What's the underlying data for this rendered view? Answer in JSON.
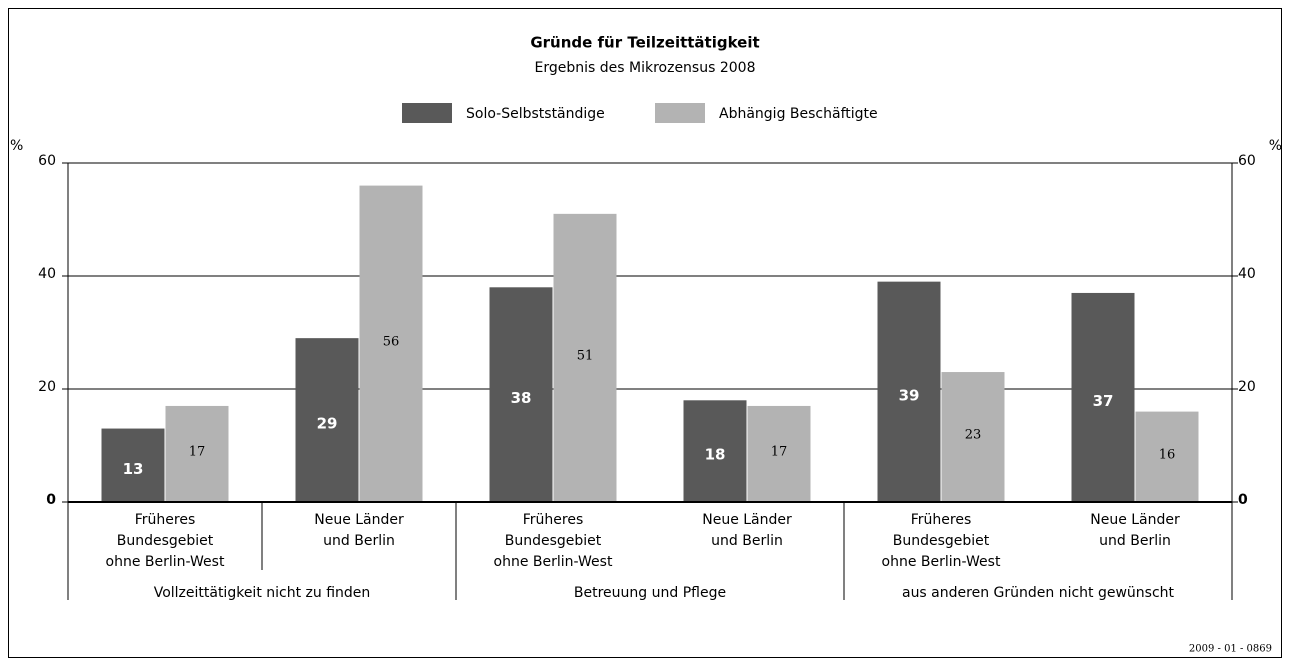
{
  "chart_data": {
    "type": "bar",
    "title": "Gründe für Teilzeittätigkeit",
    "subtitle": "Ergebnis des Mikrozensus 2008",
    "y_unit": "%",
    "categories": [
      [
        "Früheres",
        "Bundesgebiet",
        "ohne Berlin-West"
      ],
      [
        "Neue Länder",
        "und Berlin"
      ],
      [
        "Früheres",
        "Bundesgebiet",
        "ohne Berlin-West"
      ],
      [
        "Neue Länder",
        "und Berlin"
      ],
      [
        "Früheres",
        "Bundesgebiet",
        "ohne Berlin-West"
      ],
      [
        "Neue Länder",
        "und Berlin"
      ]
    ],
    "groups": [
      "Vollzeittätigkeit nicht zu finden",
      "Betreuung und Pflege",
      "aus anderen Gründen nicht gewünscht"
    ],
    "series": [
      {
        "name": "Solo-Selbstständige",
        "color": "#595959",
        "values": [
          13,
          29,
          38,
          18,
          39,
          37
        ]
      },
      {
        "name": "Abhängig Beschäftigte",
        "color": "#b3b3b3",
        "values": [
          17,
          56,
          51,
          17,
          23,
          16
        ]
      }
    ],
    "ylim": [
      0,
      60
    ],
    "yticks": [
      0,
      20,
      40,
      60
    ],
    "grid": true,
    "source_code": "2009 - 01 - 0869"
  }
}
